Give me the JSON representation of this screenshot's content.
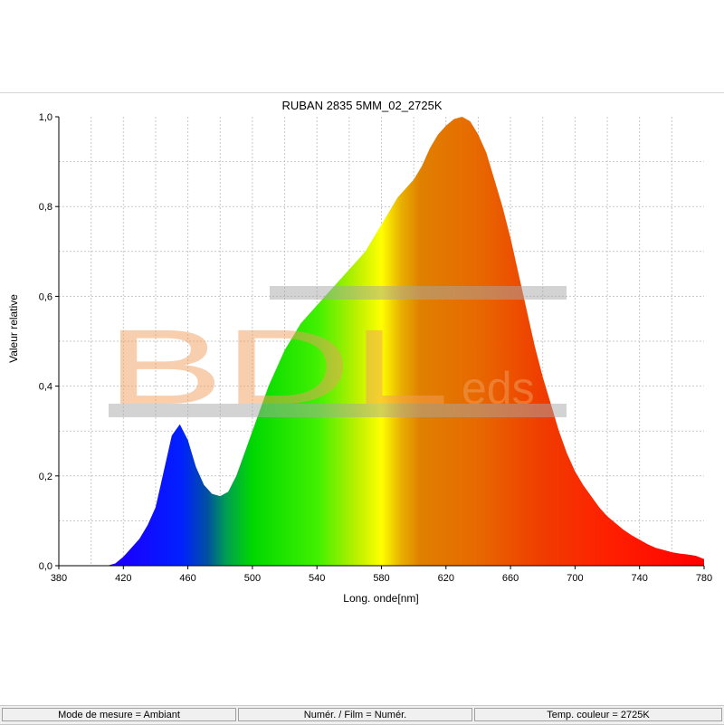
{
  "chart_data": {
    "type": "area",
    "title": "RUBAN 2835 5MM_02_2725K",
    "xlabel": "Long. onde[nm]",
    "ylabel": "Valeur relative",
    "xlim": [
      380,
      780
    ],
    "ylim": [
      0,
      1
    ],
    "x_ticks": [
      "380",
      "420",
      "460",
      "500",
      "540",
      "580",
      "620",
      "660",
      "700",
      "740",
      "780"
    ],
    "y_ticks": [
      "0,0",
      "0,2",
      "0,4",
      "0,6",
      "0,8",
      "1,0"
    ],
    "grid": true,
    "fill": "visible-spectrum gradient",
    "series": [
      {
        "x": [
          410,
          415,
          420,
          425,
          430,
          435,
          440,
          445,
          450,
          455,
          460,
          465,
          470,
          475,
          480,
          485,
          490,
          495,
          500,
          505,
          510,
          515,
          520,
          525,
          530,
          535,
          540,
          545,
          550,
          555,
          560,
          565,
          570,
          575,
          580,
          585,
          590,
          595,
          600,
          605,
          610,
          615,
          620,
          625,
          630,
          635,
          640,
          645,
          650,
          655,
          660,
          665,
          670,
          675,
          680,
          685,
          690,
          695,
          700,
          705,
          710,
          715,
          720,
          725,
          730,
          735,
          740,
          745,
          750,
          755,
          760,
          765,
          770,
          775,
          780
        ],
        "y": [
          0.0,
          0.005,
          0.02,
          0.04,
          0.06,
          0.09,
          0.13,
          0.21,
          0.29,
          0.315,
          0.28,
          0.22,
          0.18,
          0.16,
          0.155,
          0.165,
          0.2,
          0.25,
          0.3,
          0.35,
          0.4,
          0.44,
          0.48,
          0.51,
          0.54,
          0.56,
          0.58,
          0.6,
          0.62,
          0.64,
          0.66,
          0.68,
          0.7,
          0.73,
          0.76,
          0.79,
          0.82,
          0.84,
          0.86,
          0.89,
          0.93,
          0.96,
          0.98,
          0.995,
          1.0,
          0.99,
          0.96,
          0.92,
          0.86,
          0.8,
          0.73,
          0.65,
          0.57,
          0.49,
          0.42,
          0.36,
          0.3,
          0.25,
          0.21,
          0.18,
          0.155,
          0.13,
          0.11,
          0.095,
          0.08,
          0.068,
          0.058,
          0.048,
          0.04,
          0.035,
          0.03,
          0.027,
          0.025,
          0.022,
          0.015
        ]
      }
    ]
  },
  "watermark": {
    "big": "BDL",
    "small": "eds",
    "color": "#f0a060"
  },
  "status_bar": {
    "cells": [
      "Mode de mesure = Ambiant",
      "Numér. / Film = Numér.",
      "Temp. couleur = 2725K"
    ]
  }
}
